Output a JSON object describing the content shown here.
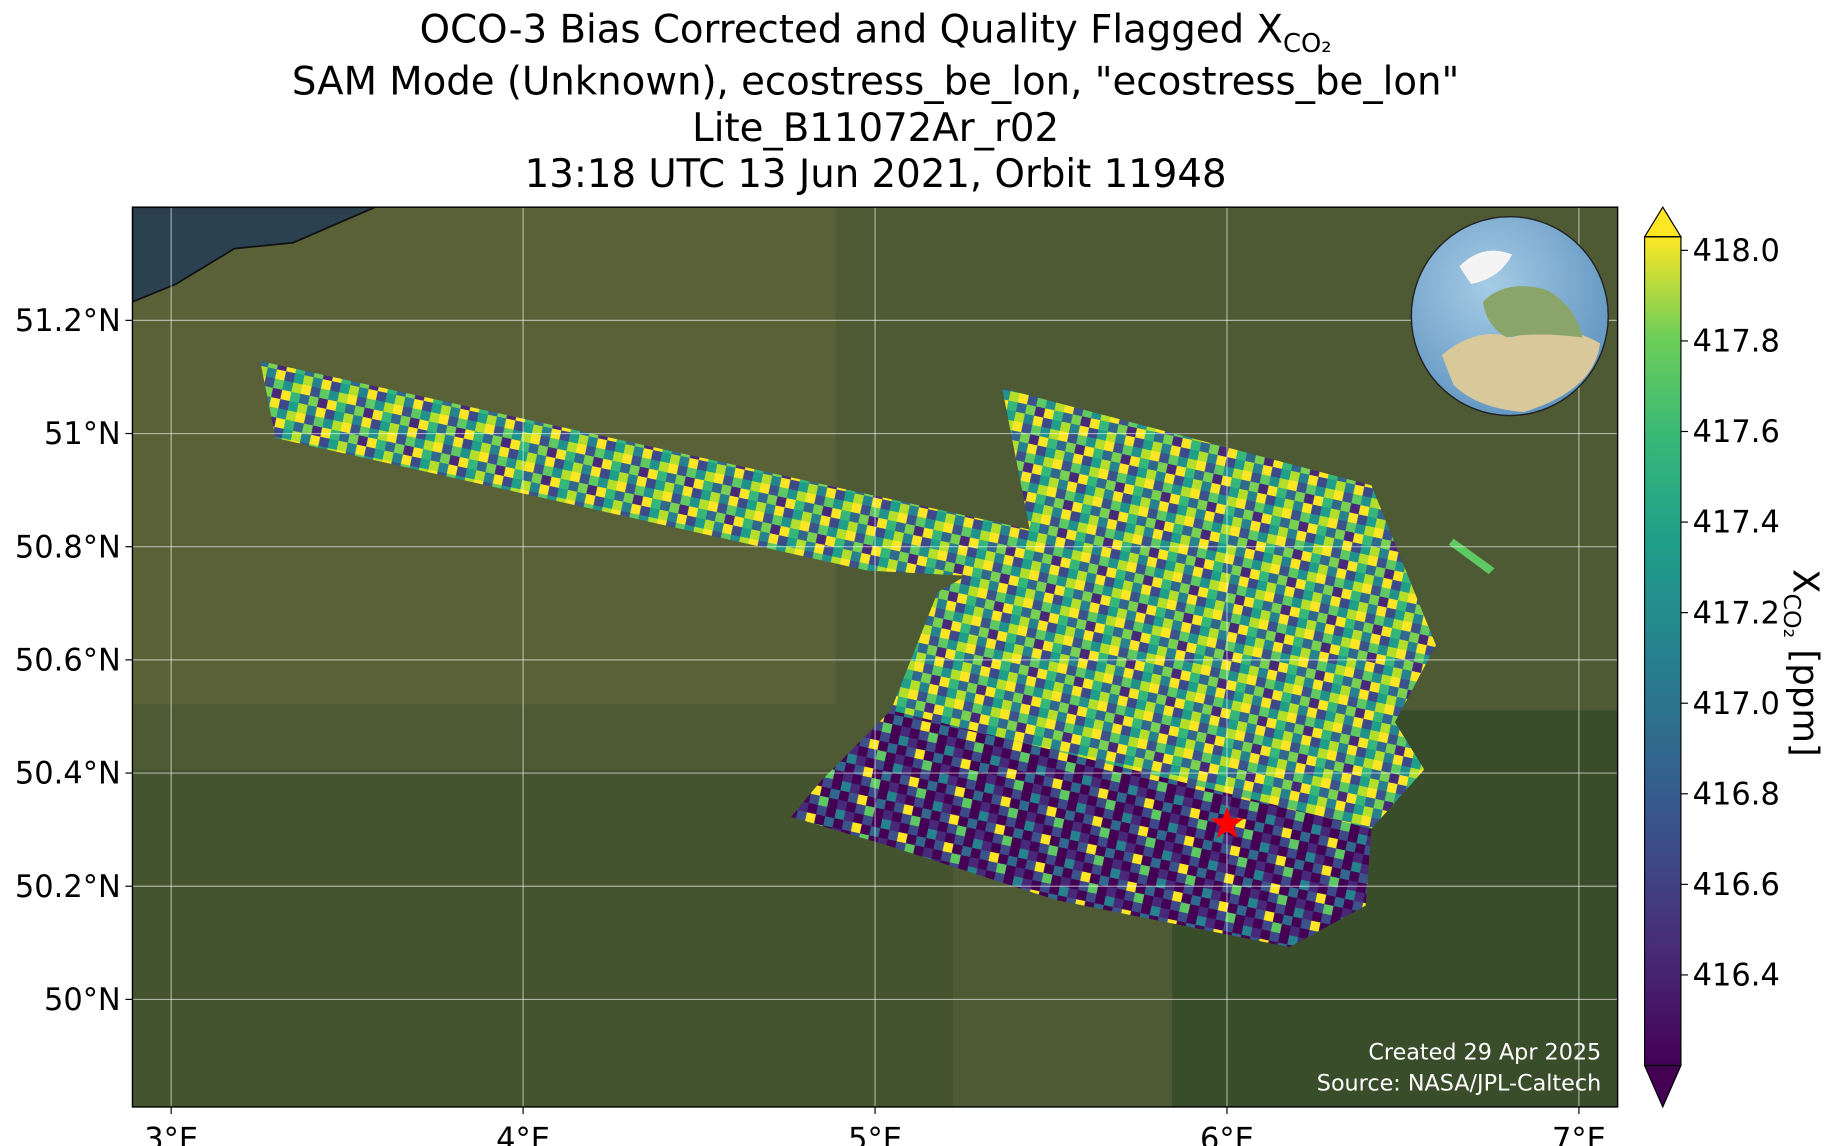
{
  "chart_data": {
    "type": "map",
    "title": [
      {
        "text": "OCO-3 Bias Corrected and Quality Flagged X",
        "subscript": "CO₂"
      },
      "SAM Mode (Unknown), ecostress_be_lon, \"ecostress_be_lon\"",
      "Lite_B11072Ar_r02",
      "13:18 UTC 13 Jun 2021, Orbit 11948"
    ],
    "xlim": [
      2.89,
      7.11
    ],
    "ylim": [
      49.81,
      51.4
    ],
    "xticks": [
      {
        "value": 3,
        "label": "3°E"
      },
      {
        "value": 4,
        "label": "4°E"
      },
      {
        "value": 5,
        "label": "5°E"
      },
      {
        "value": 6,
        "label": "6°E"
      },
      {
        "value": 7,
        "label": "7°E"
      }
    ],
    "yticks": [
      {
        "value": 50,
        "label": "50°N"
      },
      {
        "value": 50.2,
        "label": "50.2°N"
      },
      {
        "value": 50.4,
        "label": "50.4°N"
      },
      {
        "value": 50.6,
        "label": "50.6°N"
      },
      {
        "value": 50.8,
        "label": "50.8°N"
      },
      {
        "value": 51,
        "label": "51°N"
      },
      {
        "value": 51.2,
        "label": "51.2°N"
      }
    ],
    "grid": true,
    "colorbar": {
      "lim": [
        416.2,
        418.03
      ],
      "extend": "both",
      "ticks": [
        {
          "value": 416.4,
          "label": "416.4"
        },
        {
          "value": 416.6,
          "label": "416.6"
        },
        {
          "value": 416.8,
          "label": "416.8"
        },
        {
          "value": 417,
          "label": "417.0"
        },
        {
          "value": 417.2,
          "label": "417.2"
        },
        {
          "value": 417.4,
          "label": "417.4"
        },
        {
          "value": 417.6,
          "label": "417.6"
        },
        {
          "value": 417.8,
          "label": "417.8"
        },
        {
          "value": 418,
          "label": "418.0"
        }
      ],
      "label": {
        "text": "X",
        "subscript": "CO₂",
        "unit": " [ppm]"
      }
    },
    "target": {
      "lon": 6.0,
      "lat": 50.31,
      "color": "#ff0000"
    },
    "credits": [
      "Created 29 Apr 2025",
      "Source: NASA/JPL-Caltech"
    ]
  }
}
